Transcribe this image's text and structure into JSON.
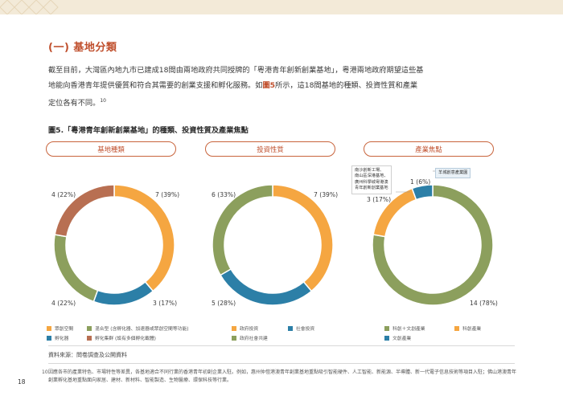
{
  "section_title": "(一) 基地分類",
  "body": {
    "line1": "截至目前，大灣區內地九市已建成18間由兩地政府共同授牌的「粵港青年創新創業基地」，粵港兩地政府期望這些基",
    "line2_pre": "地能向香港青年提供優質和符合其需要的創業支援和孵化服務。如",
    "line2_fig": "圖5",
    "line2_post": "所示，這18間基地的種類、投資性質和產業",
    "line3": "定位各有不同。",
    "line3_sup": "10"
  },
  "figure_title": "圖5.「粵港青年創新創業基地」的種類、投資性質及產業焦點",
  "colors": {
    "orange": "#f5a641",
    "blue": "#2c7fa7",
    "green": "#8c9f5d",
    "brown": "#b86f52",
    "accent": "#c0502e"
  },
  "panels": [
    {
      "heading": "基地種類",
      "slices": [
        {
          "label": "7 (39%)",
          "value": 7,
          "color": "orange"
        },
        {
          "label": "3 (17%)",
          "value": 3,
          "color": "blue"
        },
        {
          "label": "4 (22%)",
          "value": 4,
          "color": "green"
        },
        {
          "label": "4 (22%)",
          "value": 4,
          "color": "brown"
        }
      ],
      "legend": [
        {
          "text": "眾創空間",
          "color": "orange"
        },
        {
          "text": "混合型 (含孵化器、加速器或眾創空間等功能)",
          "color": "green"
        },
        {
          "text": "孵化器",
          "color": "blue"
        },
        {
          "text": "孵化集群 (設有多個孵化載體)",
          "color": "brown"
        }
      ]
    },
    {
      "heading": "投資性質",
      "slices": [
        {
          "label": "7 (39%)",
          "value": 7,
          "color": "orange"
        },
        {
          "label": "5 (28%)",
          "value": 5,
          "color": "blue"
        },
        {
          "label": "6 (33%)",
          "value": 6,
          "color": "green"
        }
      ],
      "legend": [
        {
          "text": "政府投資",
          "color": "orange"
        },
        {
          "text": "社會投資",
          "color": "blue"
        },
        {
          "text": "政府社會共建",
          "color": "green"
        }
      ]
    },
    {
      "heading": "產業焦點",
      "slices": [
        {
          "label": "14 (78%)",
          "value": 14,
          "color": "green"
        },
        {
          "label": "3 (17%)",
          "value": 3,
          "color": "orange"
        },
        {
          "label": "1 (6%)",
          "value": 1,
          "color": "blue"
        }
      ],
      "legend": [
        {
          "text": "科創＋文創產業",
          "color": "green"
        },
        {
          "text": "科創產業",
          "color": "orange"
        },
        {
          "text": "文創產業",
          "color": "blue"
        }
      ],
      "callouts": {
        "orange": "南沙創新工場、\n南山區深港基地、\n廣州科學城粵港澳\n青年創新創業基地",
        "blue": "羊城創意產業園"
      }
    }
  ],
  "source": "資料來源：問卷調查及公開資料",
  "footnote_num": "10",
  "footnote": "因應各市的產業特色、市場特性等差異，各基地適合不同行業的香港青年初創企業入駐。例如，惠州仲愷港澳青年創業基地重點吸引智能硬件、人工智能、新能源、半導體、新一代電子信息技術等項目入駐；佛山港澳青年創業孵化基地重點面向家居、建材、新材料、智能製造、生物醫療、環保科技等行業。",
  "page_number": "18"
}
